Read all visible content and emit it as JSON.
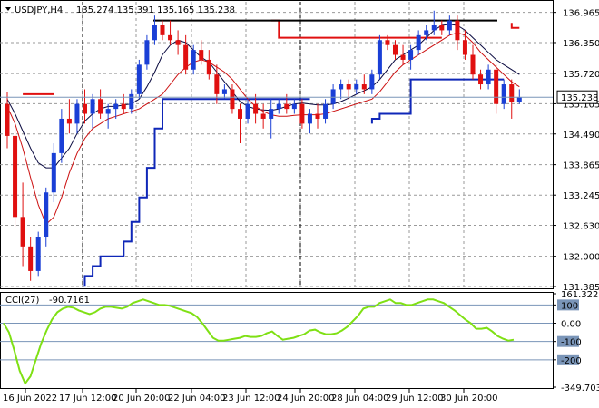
{
  "header": {
    "symbol_text": "USDJPY,H4",
    "ohlc_text": "135.274 135.391 135.165 135.238"
  },
  "colors": {
    "bull": "#1a3fd6",
    "bear": "#e01010",
    "fast_ma": "#cc1010",
    "slow_ma": "#0a0a40",
    "channel": "#0f27b8",
    "resistance": "#000000",
    "cci": "#7fe014",
    "level": "#7a95b8",
    "grid": "#9a9a9a",
    "price_tag": "#ffffff"
  },
  "chart_data": [
    {
      "type": "candlestick",
      "title": "USDJPY,H4",
      "ylim": [
        131.385,
        137.18
      ],
      "y_ticks": [
        "136.965",
        "136.350",
        "135.720",
        "135.105",
        "134.490",
        "133.865",
        "133.245",
        "132.630",
        "132.000",
        "131.385"
      ],
      "x_ticks": [
        "16 Jun 2022",
        "17 Jun 12:00",
        "20 Jun 20:00",
        "22 Jun 04:00",
        "23 Jun 12:00",
        "24 Jun 20:00",
        "28 Jun 04:00",
        "29 Jun 12:00",
        "30 Jun 20:00"
      ],
      "current_price": "135.238",
      "candles": [
        [
          135.1,
          135.35,
          134.2,
          134.45
        ],
        [
          134.45,
          134.6,
          132.6,
          132.8
        ],
        [
          132.8,
          133.5,
          131.8,
          132.2
        ],
        [
          132.2,
          132.4,
          131.5,
          131.7
        ],
        [
          131.7,
          132.5,
          131.6,
          132.4
        ],
        [
          132.4,
          133.4,
          132.2,
          133.3
        ],
        [
          133.3,
          134.3,
          133.1,
          134.1
        ],
        [
          134.1,
          135.0,
          133.9,
          134.8
        ],
        [
          134.8,
          135.2,
          134.5,
          134.7
        ],
        [
          134.7,
          135.2,
          134.5,
          135.1
        ],
        [
          135.1,
          135.4,
          134.7,
          134.9
        ],
        [
          134.9,
          135.3,
          134.6,
          135.2
        ],
        [
          135.2,
          135.4,
          134.8,
          134.9
        ],
        [
          134.9,
          135.1,
          134.6,
          135.0
        ],
        [
          135.0,
          135.2,
          134.8,
          135.1
        ],
        [
          135.1,
          135.3,
          134.9,
          135.0
        ],
        [
          135.0,
          135.4,
          134.9,
          135.3
        ],
        [
          135.3,
          136.0,
          135.2,
          135.9
        ],
        [
          135.9,
          136.5,
          135.8,
          136.4
        ],
        [
          136.4,
          136.9,
          136.3,
          136.7
        ],
        [
          136.7,
          136.8,
          136.4,
          136.5
        ],
        [
          136.5,
          136.8,
          136.3,
          136.4
        ],
        [
          136.4,
          136.6,
          136.1,
          136.3
        ],
        [
          136.3,
          136.5,
          135.7,
          135.8
        ],
        [
          135.8,
          136.3,
          135.7,
          136.2
        ],
        [
          136.2,
          136.4,
          135.9,
          136.0
        ],
        [
          136.0,
          136.2,
          135.6,
          135.7
        ],
        [
          135.7,
          135.9,
          135.1,
          135.3
        ],
        [
          135.3,
          135.5,
          135.2,
          135.4
        ],
        [
          135.4,
          135.5,
          134.9,
          135.0
        ],
        [
          135.0,
          135.1,
          134.3,
          134.8
        ],
        [
          134.8,
          135.2,
          134.7,
          135.1
        ],
        [
          135.1,
          135.3,
          134.7,
          134.9
        ],
        [
          134.9,
          135.1,
          134.6,
          134.8
        ],
        [
          134.8,
          135.2,
          134.4,
          135.0
        ],
        [
          135.0,
          135.2,
          134.9,
          135.1
        ],
        [
          135.1,
          135.3,
          134.9,
          135.0
        ],
        [
          135.0,
          135.2,
          134.9,
          135.1
        ],
        [
          135.1,
          135.2,
          134.6,
          134.7
        ],
        [
          134.7,
          135.0,
          134.5,
          134.9
        ],
        [
          134.9,
          135.1,
          134.6,
          134.8
        ],
        [
          134.8,
          135.2,
          134.7,
          135.1
        ],
        [
          135.1,
          135.5,
          135.0,
          135.4
        ],
        [
          135.4,
          135.6,
          135.2,
          135.5
        ],
        [
          135.5,
          135.6,
          135.2,
          135.4
        ],
        [
          135.4,
          135.6,
          135.3,
          135.5
        ],
        [
          135.5,
          135.7,
          135.3,
          135.4
        ],
        [
          135.4,
          135.8,
          135.3,
          135.7
        ],
        [
          135.7,
          136.5,
          135.6,
          136.4
        ],
        [
          136.4,
          136.5,
          136.2,
          136.3
        ],
        [
          136.3,
          136.4,
          136.0,
          136.1
        ],
        [
          136.1,
          136.3,
          135.9,
          136.0
        ],
        [
          136.0,
          136.3,
          135.8,
          136.2
        ],
        [
          136.2,
          136.6,
          136.1,
          136.5
        ],
        [
          136.5,
          136.7,
          136.4,
          136.6
        ],
        [
          136.6,
          137.0,
          136.5,
          136.7
        ],
        [
          136.7,
          136.8,
          136.5,
          136.6
        ],
        [
          136.6,
          136.9,
          136.5,
          136.8
        ],
        [
          136.8,
          136.9,
          136.2,
          136.4
        ],
        [
          136.4,
          136.6,
          136.0,
          136.1
        ],
        [
          136.1,
          136.3,
          135.6,
          135.7
        ],
        [
          135.7,
          135.8,
          135.4,
          135.5
        ],
        [
          135.5,
          135.9,
          135.4,
          135.8
        ],
        [
          135.8,
          135.9,
          134.9,
          135.1
        ],
        [
          135.1,
          135.6,
          135.0,
          135.5
        ],
        [
          135.5,
          135.6,
          134.8,
          135.15
        ],
        [
          135.15,
          135.4,
          135.1,
          135.24
        ]
      ],
      "indicators": {
        "slow_ma": [
          135.2,
          134.9,
          134.55,
          134.2,
          133.9,
          133.8,
          133.8,
          134.0,
          134.2,
          134.5,
          134.75,
          134.9,
          135.0,
          135.05,
          135.05,
          135.08,
          135.1,
          135.2,
          135.45,
          135.75,
          136.1,
          136.3,
          136.4,
          136.35,
          136.2,
          136.05,
          135.95,
          135.75,
          135.55,
          135.35,
          135.15,
          135.05,
          135.0,
          134.98,
          134.97,
          135.0,
          135.05,
          135.1,
          135.12,
          135.1,
          135.08,
          135.08,
          135.1,
          135.15,
          135.22,
          135.3,
          135.37,
          135.45,
          135.6,
          135.8,
          136.0,
          136.1,
          136.2,
          136.3,
          136.45,
          136.6,
          136.7,
          136.72,
          136.7,
          136.6,
          136.45,
          136.3,
          136.15,
          136.0,
          135.9,
          135.8,
          135.7
        ],
        "fast_ma": [
          135.05,
          134.7,
          134.2,
          133.6,
          133.05,
          132.65,
          132.8,
          133.2,
          133.7,
          134.1,
          134.4,
          134.6,
          134.7,
          134.8,
          134.85,
          134.9,
          134.95,
          135.0,
          135.1,
          135.2,
          135.3,
          135.5,
          135.7,
          135.85,
          135.95,
          136.0,
          135.95,
          135.85,
          135.75,
          135.6,
          135.4,
          135.2,
          135.05,
          134.95,
          134.88,
          134.85,
          134.85,
          134.87,
          134.88,
          134.88,
          134.88,
          134.9,
          134.95,
          135.0,
          135.05,
          135.1,
          135.15,
          135.2,
          135.35,
          135.55,
          135.75,
          135.9,
          136.0,
          136.1,
          136.2,
          136.3,
          136.4,
          136.5,
          136.55,
          136.5,
          136.35,
          136.15,
          136.0,
          135.85,
          135.7,
          135.55,
          135.45
        ],
        "channel_upper": [
          null,
          null,
          135.3,
          135.3,
          135.3,
          135.3,
          135.3,
          null,
          null,
          null,
          null,
          null,
          null,
          null,
          null,
          null,
          null,
          null,
          null,
          null,
          null,
          null,
          null,
          null,
          null,
          null,
          null,
          null,
          null,
          null,
          null,
          null,
          null,
          null,
          136.8,
          136.8,
          136.45,
          136.45,
          136.45,
          136.45,
          136.45,
          136.45,
          136.45,
          136.45,
          136.45,
          136.45,
          136.45,
          136.45,
          136.45,
          136.45,
          136.45,
          136.45,
          136.45,
          136.45,
          136.45,
          136.45,
          136.45,
          null,
          null,
          null,
          null,
          null,
          null,
          null,
          null,
          136.75,
          136.65
        ],
        "channel_lower": [
          null,
          null,
          null,
          null,
          null,
          null,
          null,
          null,
          null,
          null,
          131.4,
          131.6,
          131.8,
          132.0,
          132.0,
          132.0,
          132.3,
          132.7,
          133.2,
          133.8,
          134.6,
          135.2,
          135.2,
          135.2,
          135.2,
          135.2,
          135.2,
          135.2,
          135.2,
          135.2,
          135.2,
          135.2,
          135.2,
          135.2,
          135.2,
          135.2,
          135.2,
          135.2,
          135.2,
          135.2,
          null,
          null,
          null,
          null,
          null,
          null,
          null,
          134.7,
          134.8,
          134.9,
          134.9,
          134.9,
          134.9,
          135.6,
          135.6,
          135.6,
          135.6,
          135.6,
          135.6,
          135.6,
          135.6,
          135.6,
          135.6,
          135.6,
          135.6,
          null,
          null
        ],
        "resistance": {
          "from": 169,
          "to": 548,
          "level": 136.8
        }
      }
    },
    {
      "type": "line",
      "title": "CCI(27) -90.7161",
      "series_label": "CCI(27)",
      "value_label": "-90.7161",
      "ylim": [
        -349.7,
        161.322
      ],
      "y_ticks": [
        "161.322",
        "100",
        "0.00",
        "-100",
        "-200",
        "-349.703"
      ],
      "levels": [
        100,
        0,
        -100,
        -200
      ],
      "values": [
        0,
        -50,
        -150,
        -260,
        -330,
        -290,
        -200,
        -110,
        -40,
        20,
        60,
        80,
        90,
        85,
        70,
        60,
        50,
        60,
        80,
        90,
        90,
        85,
        80,
        90,
        110,
        120,
        130,
        120,
        110,
        100,
        100,
        95,
        85,
        75,
        65,
        55,
        35,
        0,
        -40,
        -80,
        -95,
        -95,
        -90,
        -85,
        -80,
        -70,
        -75,
        -75,
        -70,
        -55,
        -45,
        -70,
        -90,
        -85,
        -80,
        -70,
        -60,
        -40,
        -35,
        -50,
        -60,
        -60,
        -55,
        -40,
        -20,
        10,
        40,
        80,
        90,
        90,
        110,
        120,
        130,
        110,
        110,
        100,
        100,
        110,
        120,
        130,
        130,
        120,
        110,
        90,
        70,
        45,
        20,
        0,
        -30,
        -30,
        -25,
        -45,
        -70,
        -85,
        -95,
        -90
      ]
    }
  ]
}
